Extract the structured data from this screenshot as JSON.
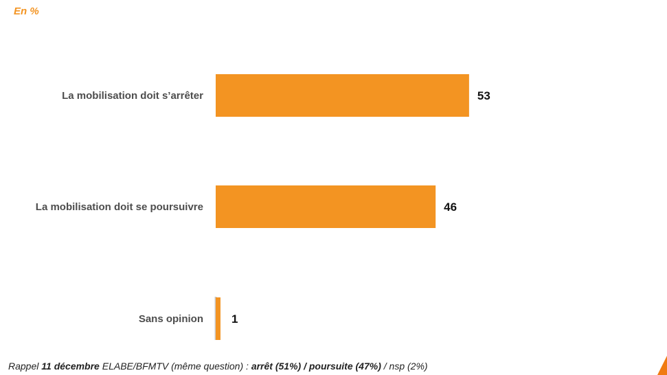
{
  "unit_label": "En %",
  "colors": {
    "bar": "#f39422",
    "axis": "#cccccc",
    "accent": "#f07b12"
  },
  "chart_data": {
    "type": "bar",
    "orientation": "horizontal",
    "categories": [
      "La mobilisation doit s’arrêter",
      "La mobilisation doit se poursuivre",
      "Sans opinion"
    ],
    "values": [
      53,
      46,
      1
    ],
    "xlim": [
      0,
      100
    ],
    "grid": false,
    "legend": "none"
  },
  "footnote": {
    "prefix": "Rappel ",
    "date": "11 décembre",
    "source": " ELABE/BFMTV (même question) : ",
    "arret": "arrêt (51%) / poursuite (47%)",
    "nsp": " / nsp (2%)"
  }
}
